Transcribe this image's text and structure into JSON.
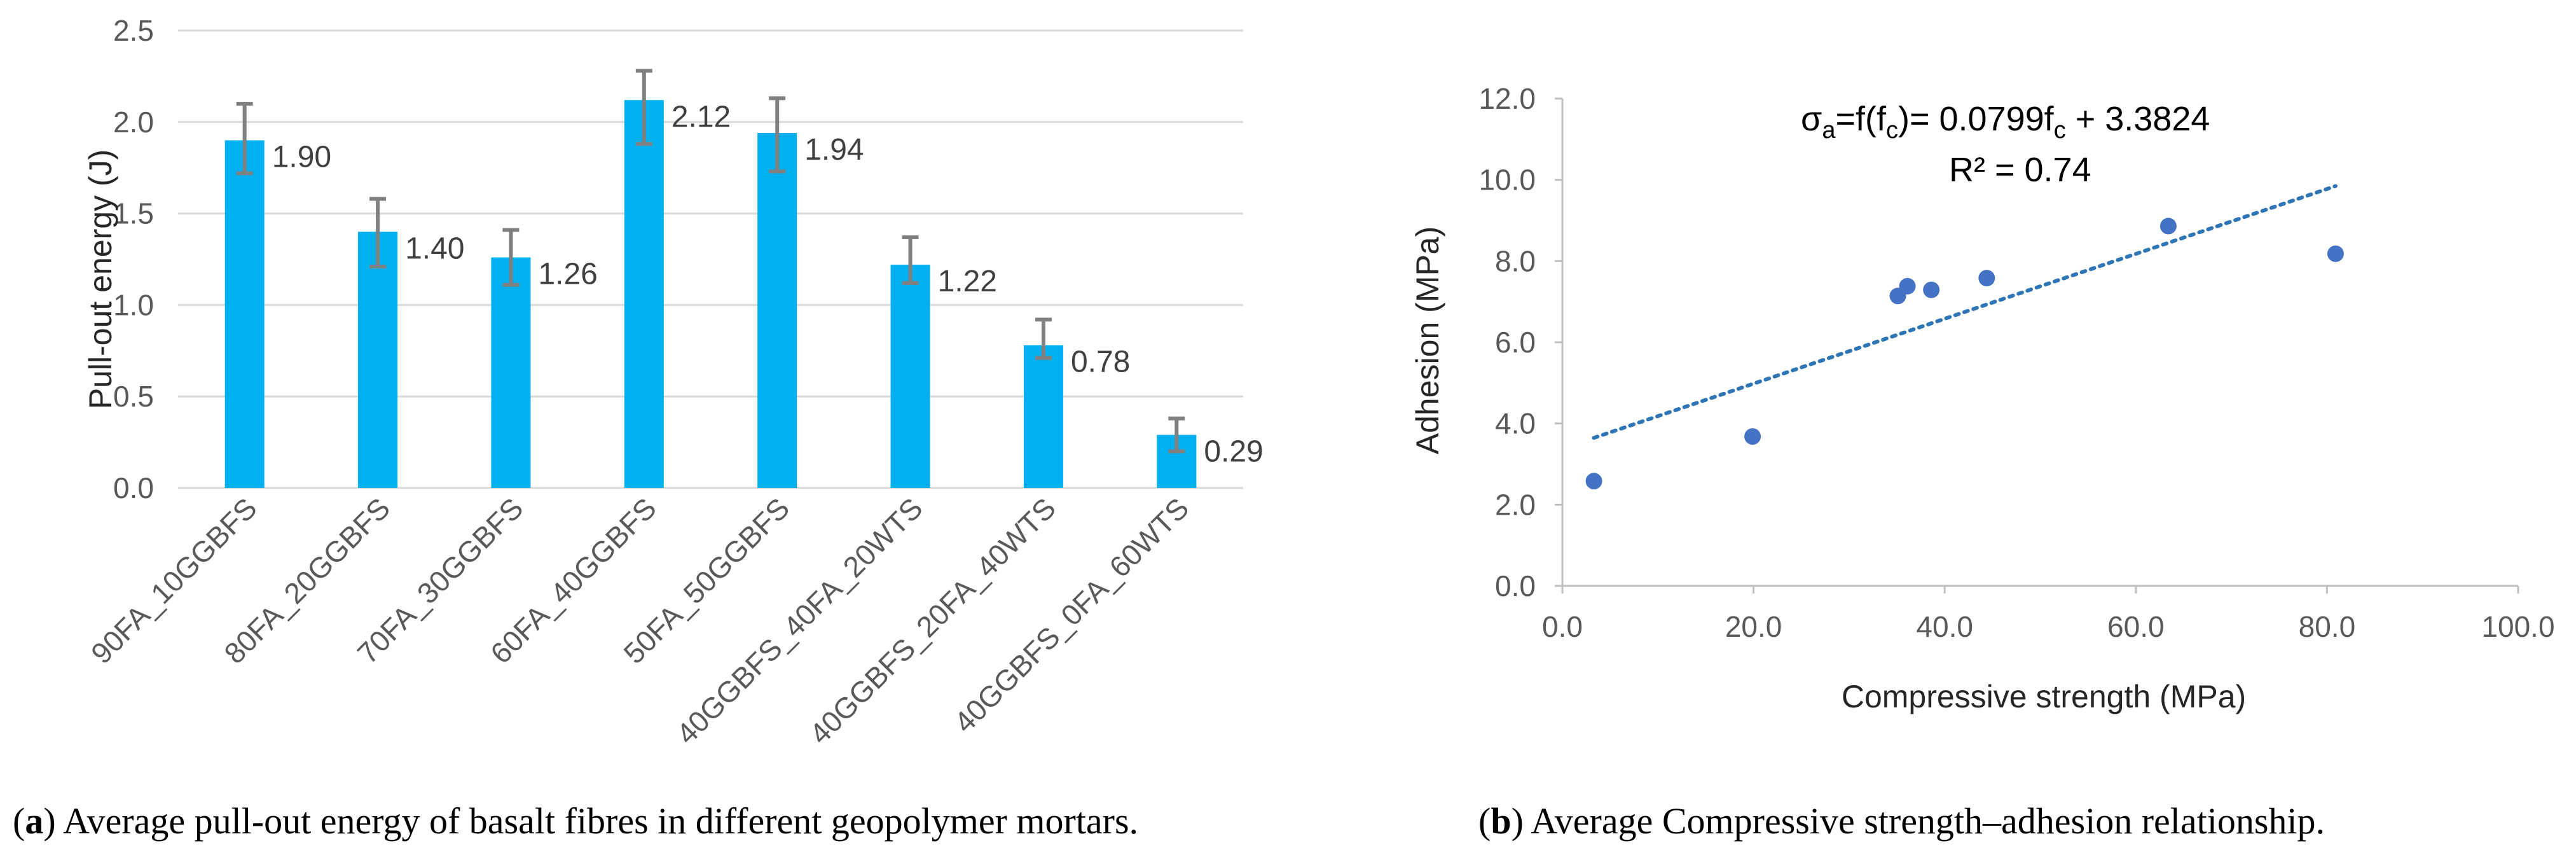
{
  "chart_data": [
    {
      "type": "bar",
      "ylabel": "Pull-out energy (J)",
      "xlabel": "",
      "ylim": [
        0,
        2.5
      ],
      "yticks": [
        0.0,
        0.5,
        1.0,
        1.5,
        2.0,
        2.5
      ],
      "ytick_labels": [
        "0.0",
        "0.5",
        "1.0",
        "1.5",
        "2.0",
        "2.5"
      ],
      "grid": "horizontal",
      "bar_color": "#00b0f0",
      "error_color": "#808080",
      "categories": [
        "90FA_10GGBFS",
        "80FA_20GGBFS",
        "70FA_30GGBFS",
        "60FA_40GGBFS",
        "50FA_50GGBFS",
        "40GGBFS_40FA_20WTS",
        "40GGBFS_20FA_40WTS",
        "40GGBFS_0FA_60WTS"
      ],
      "values": [
        1.9,
        1.4,
        1.26,
        2.12,
        1.94,
        1.22,
        0.78,
        0.29
      ],
      "value_labels": [
        "1.90",
        "1.40",
        "1.26",
        "2.12",
        "1.94",
        "1.22",
        "0.78",
        "0.29"
      ],
      "error_low": [
        1.72,
        1.21,
        1.11,
        1.88,
        1.73,
        1.12,
        0.71,
        0.2
      ],
      "error_high": [
        2.1,
        1.58,
        1.41,
        2.28,
        2.13,
        1.37,
        0.92,
        0.38
      ],
      "caption_prefix": "(",
      "caption_letter": "a",
      "caption_text": ") Average pull-out energy of basalt fibres in different geopolymer mortars."
    },
    {
      "type": "scatter",
      "xlabel": "Compressive strength (MPa)",
      "ylabel": "Adhesion (MPa)",
      "xlim": [
        0,
        100
      ],
      "ylim": [
        0,
        12
      ],
      "xticks": [
        0,
        20,
        40,
        60,
        80,
        100
      ],
      "xtick_labels": [
        "0.0",
        "20.0",
        "40.0",
        "60.0",
        "80.0",
        "100.0"
      ],
      "yticks": [
        0,
        2,
        4,
        6,
        8,
        10,
        12
      ],
      "ytick_labels": [
        "0.0",
        "2.0",
        "4.0",
        "6.0",
        "8.0",
        "10.0",
        "12.0"
      ],
      "grid": "none",
      "point_color": "#4472c4",
      "trend_color": "#2e75b6",
      "x": [
        3.3,
        19.9,
        35.1,
        36.1,
        38.6,
        44.4,
        63.4,
        80.9
      ],
      "y": [
        2.58,
        3.68,
        7.14,
        7.38,
        7.29,
        7.58,
        8.86,
        8.18
      ],
      "trendline": {
        "type": "linear",
        "slope": 0.0799,
        "intercept": 3.3824,
        "x_range": [
          3.3,
          80.9
        ]
      },
      "equation_parts": {
        "sigma": "σ",
        "sub_a": "a",
        "mid": "=f(f",
        "sub_c1": "c",
        "mid2": ")= 0.0799f",
        "sub_c2": "c",
        "tail": " + 3.3824"
      },
      "r2_label": "R² = 0.74",
      "caption_prefix": "(",
      "caption_letter": "b",
      "caption_text": ") Average Compressive strength–adhesion relationship."
    }
  ]
}
